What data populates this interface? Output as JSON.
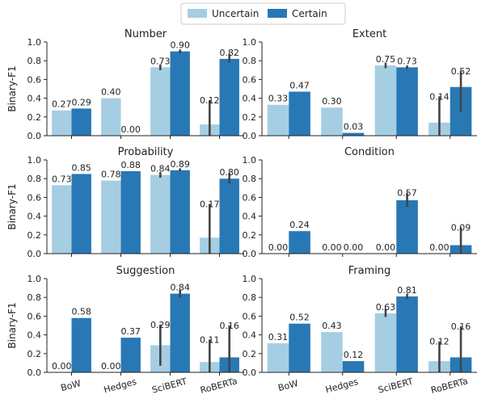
{
  "legend": {
    "entries": [
      {
        "name": "Uncertain",
        "color": "#a6cee3"
      },
      {
        "name": "Certain",
        "color": "#2878b5"
      }
    ],
    "placement": "top-center"
  },
  "colors": {
    "uncertain": "#a6cee3",
    "certain": "#2878b5",
    "errorbar": "#444444",
    "axis": "#222222"
  },
  "chart_data": [
    {
      "type": "bar",
      "title": "Number",
      "ylabel": "Binary-F1",
      "ylim": [
        0,
        1.0
      ],
      "yticks": [
        "0.0",
        "0.2",
        "0.4",
        "0.6",
        "0.8",
        "1.0"
      ],
      "categories": [
        "BoW",
        "Hedges",
        "SciBERT",
        "RoBERTa"
      ],
      "show_xticklabels": false,
      "series": [
        {
          "name": "Uncertain",
          "values": [
            0.27,
            0.4,
            0.73,
            0.12
          ],
          "labels": [
            "0.27",
            "0.40",
            "0.73",
            "0.12"
          ],
          "err": [
            null,
            null,
            [
              0.7,
              0.76
            ],
            [
              0.0,
              0.38
            ]
          ]
        },
        {
          "name": "Certain",
          "values": [
            0.29,
            0.0,
            0.9,
            0.82
          ],
          "labels": [
            "0.29",
            "0.00",
            "0.90",
            "0.82"
          ],
          "err": [
            null,
            null,
            [
              0.88,
              0.92
            ],
            [
              0.78,
              0.87
            ]
          ]
        }
      ]
    },
    {
      "type": "bar",
      "title": "Extent",
      "ylabel": "",
      "ylim": [
        0,
        1.0
      ],
      "yticks": [
        "0.0",
        "0.2",
        "0.4",
        "0.6",
        "0.8",
        "1.0"
      ],
      "categories": [
        "BoW",
        "Hedges",
        "SciBERT",
        "RoBERTa"
      ],
      "show_xticklabels": false,
      "series": [
        {
          "name": "Uncertain",
          "values": [
            0.33,
            0.3,
            0.75,
            0.14
          ],
          "labels": [
            "0.33",
            "0.30",
            "0.75",
            "0.14"
          ],
          "err": [
            null,
            null,
            [
              0.72,
              0.78
            ],
            [
              0.0,
              0.42
            ]
          ]
        },
        {
          "name": "Certain",
          "values": [
            0.47,
            0.03,
            0.73,
            0.52
          ],
          "labels": [
            "0.47",
            "0.03",
            "0.73",
            "0.52"
          ],
          "err": [
            null,
            null,
            [
              0.71,
              0.75
            ],
            [
              0.25,
              0.69
            ]
          ]
        }
      ]
    },
    {
      "type": "bar",
      "title": "Probability",
      "ylabel": "Binary-F1",
      "ylim": [
        0,
        1.0
      ],
      "yticks": [
        "0.0",
        "0.2",
        "0.4",
        "0.6",
        "0.8",
        "1.0"
      ],
      "categories": [
        "BoW",
        "Hedges",
        "SciBERT",
        "RoBERTa"
      ],
      "show_xticklabels": false,
      "series": [
        {
          "name": "Uncertain",
          "values": [
            0.73,
            0.78,
            0.84,
            0.17
          ],
          "labels": [
            "0.73",
            "0.78",
            "0.84",
            "0.17"
          ],
          "err": [
            null,
            null,
            [
              0.81,
              0.87
            ],
            [
              0.0,
              0.53
            ]
          ]
        },
        {
          "name": "Certain",
          "values": [
            0.85,
            0.88,
            0.89,
            0.8
          ],
          "labels": [
            "0.85",
            "0.88",
            "0.89",
            "0.80"
          ],
          "err": [
            null,
            null,
            [
              0.88,
              0.91
            ],
            [
              0.75,
              0.86
            ]
          ]
        }
      ]
    },
    {
      "type": "bar",
      "title": "Condition",
      "ylabel": "",
      "ylim": [
        0,
        1.0
      ],
      "yticks": [
        "0.0",
        "0.2",
        "0.4",
        "0.6",
        "0.8",
        "1.0"
      ],
      "categories": [
        "BoW",
        "Hedges",
        "SciBERT",
        "RoBERTa"
      ],
      "show_xticklabels": false,
      "series": [
        {
          "name": "Uncertain",
          "values": [
            0.0,
            0.0,
            0.0,
            0.0
          ],
          "labels": [
            "0.00",
            "0.00",
            "0.00",
            "0.00"
          ],
          "err": [
            null,
            null,
            null,
            null
          ]
        },
        {
          "name": "Certain",
          "values": [
            0.24,
            0.0,
            0.57,
            0.09
          ],
          "labels": [
            "0.24",
            "0.00",
            "0.57",
            "0.09"
          ],
          "err": [
            null,
            null,
            [
              0.5,
              0.65
            ],
            [
              0.0,
              0.28
            ]
          ]
        }
      ]
    },
    {
      "type": "bar",
      "title": "Suggestion",
      "ylabel": "Binary-F1",
      "ylim": [
        0,
        1.0
      ],
      "yticks": [
        "0.0",
        "0.2",
        "0.4",
        "0.6",
        "0.8",
        "1.0"
      ],
      "categories": [
        "BoW",
        "Hedges",
        "SciBERT",
        "RoBERTa"
      ],
      "show_xticklabels": true,
      "series": [
        {
          "name": "Uncertain",
          "values": [
            0.0,
            0.0,
            0.29,
            0.11
          ],
          "labels": [
            "0.00",
            "0.00",
            "0.29",
            "0.11"
          ],
          "err": [
            null,
            null,
            [
              0.07,
              0.51
            ],
            [
              0.0,
              0.35
            ]
          ]
        },
        {
          "name": "Certain",
          "values": [
            0.58,
            0.37,
            0.84,
            0.16
          ],
          "labels": [
            "0.58",
            "0.37",
            "0.84",
            "0.16"
          ],
          "err": [
            null,
            null,
            [
              0.8,
              0.88
            ],
            [
              0.0,
              0.5
            ]
          ]
        }
      ]
    },
    {
      "type": "bar",
      "title": "Framing",
      "ylabel": "",
      "ylim": [
        0,
        1.0
      ],
      "yticks": [
        "0.0",
        "0.2",
        "0.4",
        "0.6",
        "0.8",
        "1.0"
      ],
      "categories": [
        "BoW",
        "Hedges",
        "SciBERT",
        "RoBERTa"
      ],
      "show_xticklabels": true,
      "series": [
        {
          "name": "Uncertain",
          "values": [
            0.31,
            0.43,
            0.63,
            0.12
          ],
          "labels": [
            "0.31",
            "0.43",
            "0.63",
            "0.12"
          ],
          "err": [
            null,
            null,
            [
              0.59,
              0.68
            ],
            [
              0.0,
              0.33
            ]
          ]
        },
        {
          "name": "Certain",
          "values": [
            0.52,
            0.12,
            0.81,
            0.16
          ],
          "labels": [
            "0.52",
            "0.12",
            "0.81",
            "0.16"
          ],
          "err": [
            null,
            null,
            [
              0.78,
              0.84
            ],
            [
              0.0,
              0.49
            ]
          ]
        }
      ]
    }
  ]
}
